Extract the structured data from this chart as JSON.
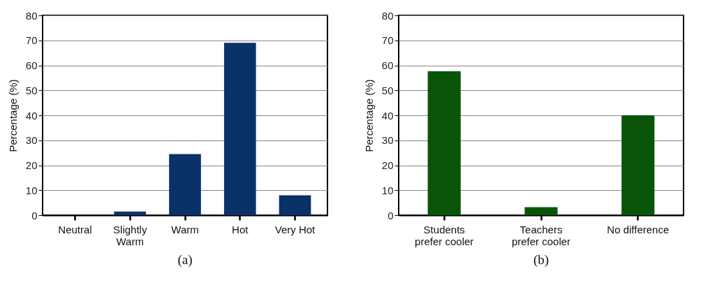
{
  "chart_data": [
    {
      "type": "bar",
      "title": "(a)",
      "ylabel": "Percentage (%)",
      "categories": [
        "Neutral",
        "Slightly\nWarm",
        "Warm",
        "Hot",
        "Very Hot"
      ],
      "values": [
        0,
        1.5,
        24.5,
        69,
        8
      ],
      "color": "#0b3169",
      "ylim": [
        0,
        80
      ],
      "yticks": [
        0,
        10,
        20,
        30,
        40,
        50,
        60,
        70,
        80
      ],
      "grid": "y"
    },
    {
      "type": "bar",
      "title": "(b)",
      "ylabel": "Percentage (%)",
      "categories": [
        "Students\nprefer cooler",
        "Teachers\nprefer cooler",
        "No difference"
      ],
      "values": [
        57.6,
        3.2,
        40
      ],
      "color": "#0a540a",
      "ylim": [
        0,
        80
      ],
      "yticks": [
        0,
        10,
        20,
        30,
        40,
        50,
        60,
        70,
        80
      ],
      "grid": "y"
    }
  ]
}
